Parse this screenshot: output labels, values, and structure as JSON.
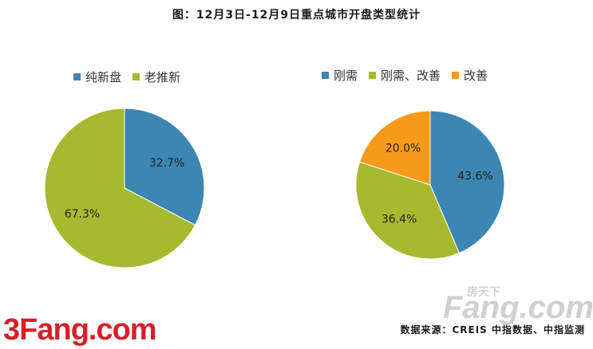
{
  "title": "图：12月3日-12月9日重点城市开盘类型统计",
  "source": "数据来源：CREIS 中指数据、中指监测",
  "logo_left": "3Fang.com",
  "watermark": {
    "main": "Fang.com",
    "sub": "房天下"
  },
  "chart_data": [
    {
      "type": "pie",
      "title": "",
      "slices": [
        {
          "label": "纯新盘",
          "value": 32.7,
          "display": "32.7%",
          "color": "#3b86b2"
        },
        {
          "label": "老推新",
          "value": 67.3,
          "display": "67.3%",
          "color": "#a7b92e"
        }
      ],
      "legend_position": "top"
    },
    {
      "type": "pie",
      "title": "",
      "slices": [
        {
          "label": "刚需",
          "value": 43.6,
          "display": "43.6%",
          "color": "#3b86b2"
        },
        {
          "label": "刚需、改善",
          "value": 36.4,
          "display": "36.4%",
          "color": "#a7b92e"
        },
        {
          "label": "改善",
          "value": 20.0,
          "display": "20.0%",
          "color": "#f59a1b"
        }
      ],
      "legend_position": "top"
    }
  ]
}
